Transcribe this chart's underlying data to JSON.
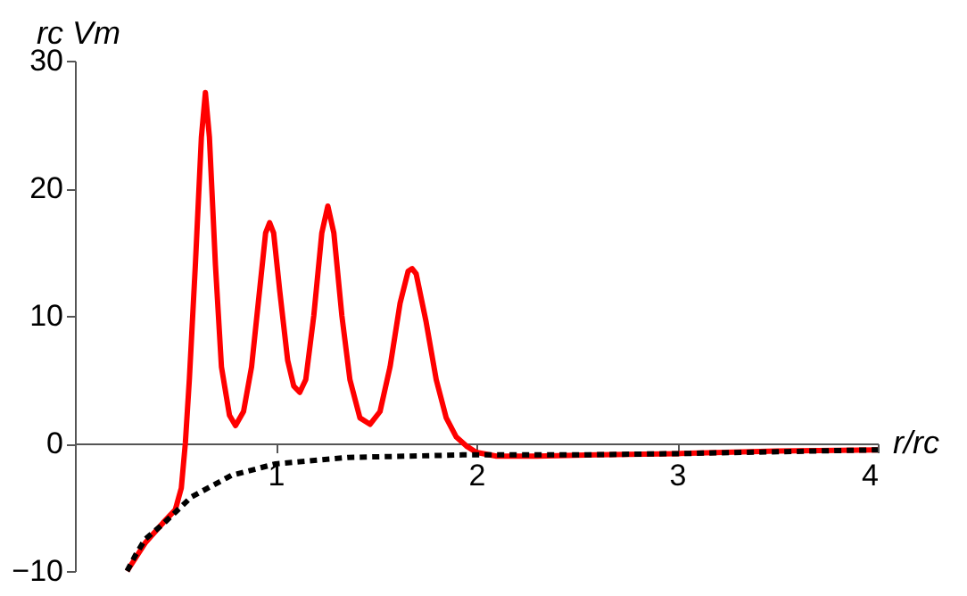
{
  "chart_data": {
    "type": "line",
    "xlabel": "r/rc",
    "ylabel": "rc Vm",
    "xlim": [
      0,
      4
    ],
    "ylim": [
      -10,
      30
    ],
    "xticks": [
      1,
      2,
      3,
      4
    ],
    "yticks": [
      -10,
      0,
      10,
      20,
      30
    ],
    "grid": false,
    "series": [
      {
        "color": "#ff0000",
        "line_style": "solid",
        "x": [
          0.26,
          0.35,
          0.44,
          0.5,
          0.53,
          0.55,
          0.57,
          0.6,
          0.63,
          0.65,
          0.67,
          0.7,
          0.73,
          0.77,
          0.8,
          0.84,
          0.88,
          0.92,
          0.95,
          0.97,
          0.99,
          1.02,
          1.06,
          1.09,
          1.12,
          1.15,
          1.19,
          1.23,
          1.26,
          1.29,
          1.33,
          1.37,
          1.42,
          1.47,
          1.52,
          1.57,
          1.62,
          1.66,
          1.68,
          1.7,
          1.75,
          1.8,
          1.85,
          1.9,
          1.95,
          2.0,
          2.1,
          2.3,
          2.6,
          3.0,
          3.5,
          4.0
        ],
        "values": [
          -10,
          -7.8,
          -6.2,
          -5.2,
          -3.5,
          0,
          5,
          14,
          24,
          27.5,
          24,
          14,
          6,
          2.2,
          1.4,
          2.5,
          6,
          12,
          16.5,
          17.3,
          16.5,
          12,
          6.5,
          4.5,
          4.0,
          5,
          10,
          16.5,
          18.6,
          16.5,
          10,
          5,
          2,
          1.5,
          2.5,
          6,
          11,
          13.5,
          13.7,
          13.3,
          9.5,
          5,
          2,
          0.5,
          -0.2,
          -0.7,
          -1.0,
          -1.0,
          -0.9,
          -0.8,
          -0.6,
          -0.5
        ]
      },
      {
        "color": "#000000",
        "line_style": "dotted",
        "x": [
          0.26,
          0.3,
          0.35,
          0.44,
          0.58,
          0.78,
          1.0,
          1.36,
          1.93,
          2.5,
          3.0,
          3.5,
          4.0
        ],
        "values": [
          -10,
          -8.8,
          -7.5,
          -6.3,
          -4.2,
          -2.5,
          -1.6,
          -1.1,
          -0.9,
          -0.9,
          -0.8,
          -0.65,
          -0.5
        ]
      }
    ]
  }
}
